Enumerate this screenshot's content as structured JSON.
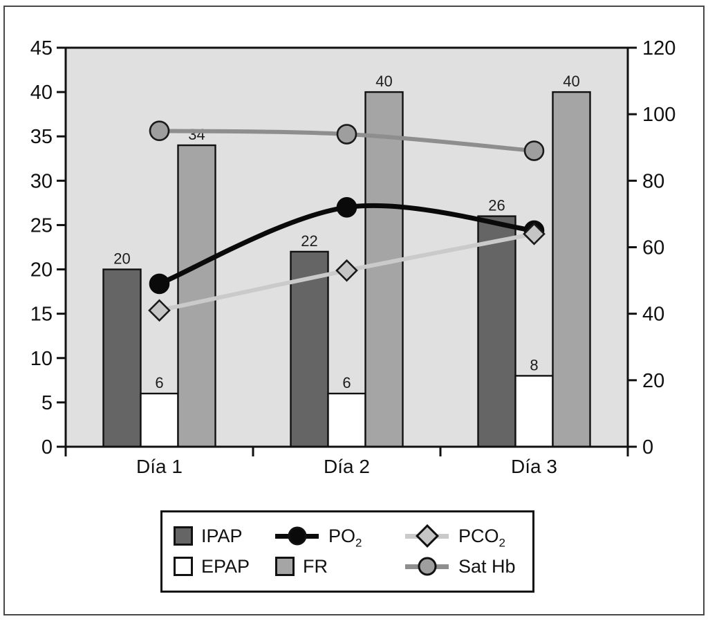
{
  "chart_data": {
    "type": "combo-bar-line",
    "title": "",
    "categories": [
      "Día 1",
      "Día 2",
      "Día 3"
    ],
    "left_axis": {
      "min": 0,
      "max": 45,
      "step": 5,
      "tick_labels": [
        "0",
        "5",
        "10",
        "15",
        "20",
        "25",
        "30",
        "35",
        "40",
        "45"
      ]
    },
    "right_axis": {
      "min": 0,
      "max": 120,
      "step": 20,
      "tick_labels": [
        "0",
        "20",
        "40",
        "60",
        "80",
        "100",
        "120"
      ]
    },
    "grid": false,
    "plot_bg": "#e0e0e0",
    "axis_color": "#111111",
    "bar_series": [
      {
        "name": "IPAP",
        "axis": "left",
        "values": [
          20,
          22,
          26
        ],
        "labels": [
          "20",
          "22",
          "26"
        ],
        "fill": "#656565"
      },
      {
        "name": "EPAP",
        "axis": "left",
        "values": [
          6,
          6,
          8
        ],
        "labels": [
          "6",
          "6",
          "8"
        ],
        "fill": "#ffffff"
      },
      {
        "name": "FR",
        "axis": "left",
        "values": [
          34,
          40,
          40
        ],
        "labels": [
          "34",
          "40",
          "40"
        ],
        "fill": "#a5a5a5"
      }
    ],
    "line_series": [
      {
        "name": "Sat Hb",
        "axis": "right",
        "values": [
          95,
          94,
          89
        ],
        "marker": "circle",
        "line_color": "#8e8e8e",
        "marker_fill": "#9e9e9e",
        "marker_stroke": "#1a1a1a",
        "line_width": 6
      },
      {
        "name": "PO2",
        "axis": "right",
        "values": [
          49,
          72,
          65
        ],
        "marker": "circle",
        "line_color": "#0a0a0a",
        "marker_fill": "#0a0a0a",
        "marker_stroke": "#0a0a0a",
        "line_width": 7
      },
      {
        "name": "PCO2",
        "axis": "right",
        "values": [
          41,
          53,
          64
        ],
        "marker": "diamond",
        "line_color": "#cacaca",
        "marker_fill": "#c5c5c5",
        "marker_stroke": "#1a1a1a",
        "line_width": 6
      }
    ],
    "legend_position": "bottom"
  },
  "legend": {
    "entries": [
      {
        "label": "IPAP",
        "sub": "",
        "type": "square",
        "line": "",
        "fill": "#656565"
      },
      {
        "label": "PO",
        "sub": "2",
        "type": "line-circle",
        "line": "#0a0a0a",
        "fill": "#0a0a0a"
      },
      {
        "label": "PCO",
        "sub": "2",
        "type": "line-diamond",
        "line": "#cacaca",
        "fill": "#c5c5c5"
      },
      {
        "label": "EPAP",
        "sub": "",
        "type": "square",
        "line": "",
        "fill": "#ffffff"
      },
      {
        "label": "FR",
        "sub": "",
        "type": "square",
        "line": "",
        "fill": "#a5a5a5"
      },
      {
        "label": "Sat Hb",
        "sub": "",
        "type": "line-circle",
        "line": "#8e8e8e",
        "fill": "#9e9e9e"
      }
    ]
  }
}
